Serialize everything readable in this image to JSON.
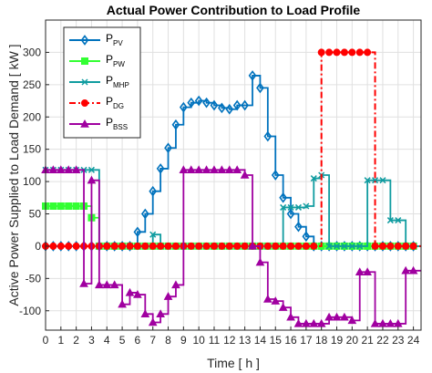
{
  "chart_data": {
    "type": "line",
    "title": "Actual Power Contribution to Load Profile",
    "xlabel": "Time [ h ]",
    "ylabel": "Active Power Supplied to Load Demand [ kW ]",
    "xlim": [
      0,
      24.5
    ],
    "ylim": [
      -130,
      350
    ],
    "xticks": [
      0,
      1,
      2,
      3,
      4,
      5,
      6,
      7,
      8,
      9,
      10,
      11,
      12,
      13,
      14,
      15,
      16,
      17,
      18,
      19,
      20,
      21,
      22,
      23,
      24
    ],
    "yticks": [
      -100,
      -50,
      0,
      50,
      100,
      150,
      200,
      250,
      300
    ],
    "grid": true,
    "legend_position": "top-left",
    "series": [
      {
        "name": "PV",
        "legend_main": "P",
        "legend_sub": "PV",
        "color": "#0072BD",
        "marker": "diamond",
        "dash": "solid",
        "x": [
          0,
          0.5,
          1,
          1.5,
          2,
          2.5,
          3,
          3.5,
          4,
          4.5,
          5,
          5.5,
          6,
          6.5,
          7,
          7.5,
          8,
          8.5,
          9,
          9.5,
          10,
          10.5,
          11,
          11.5,
          12,
          12.5,
          13,
          13.5,
          14,
          14.5,
          15,
          15.5,
          16,
          16.5,
          17,
          17.5,
          18,
          18.5,
          19,
          19.5,
          20,
          20.5,
          21,
          21.5,
          22,
          22.5,
          23,
          23.5,
          24
        ],
        "y": [
          0,
          0,
          0,
          0,
          0,
          0,
          0,
          0,
          0,
          0,
          0,
          0,
          22,
          50,
          85,
          120,
          152,
          188,
          215,
          222,
          225,
          222,
          218,
          214,
          212,
          218,
          218,
          264,
          245,
          170,
          110,
          75,
          50,
          30,
          15,
          0,
          0,
          0,
          0,
          0,
          0,
          0,
          0,
          0,
          0,
          0,
          0,
          0,
          0
        ]
      },
      {
        "name": "PW",
        "legend_main": "P",
        "legend_sub": "PW",
        "color": "#33FF33",
        "marker": "square",
        "dash": "solid",
        "x": [
          0,
          0.5,
          1,
          1.5,
          2,
          2.5,
          3,
          3.5,
          4,
          4.5,
          5,
          5.5,
          6,
          6.5,
          7,
          7.5,
          8,
          8.5,
          9,
          9.5,
          10,
          10.5,
          11,
          11.5,
          12,
          12.5,
          13,
          13.5,
          14,
          14.5,
          15,
          15.5,
          16,
          16.5,
          17,
          17.5,
          18,
          18.5,
          19,
          19.5,
          20,
          20.5,
          21,
          21.5,
          22,
          22.5,
          23,
          23.5,
          24
        ],
        "y": [
          62,
          62,
          62,
          62,
          62,
          62,
          44,
          0,
          0,
          0,
          0,
          0,
          0,
          0,
          0,
          0,
          0,
          0,
          0,
          0,
          0,
          0,
          0,
          0,
          0,
          0,
          0,
          0,
          0,
          0,
          0,
          0,
          0,
          0,
          0,
          0,
          0,
          0,
          0,
          0,
          0,
          0,
          0,
          0,
          0,
          0,
          0,
          0,
          0
        ]
      },
      {
        "name": "MHP",
        "legend_main": "P",
        "legend_sub": "MHP",
        "color": "#109CA0",
        "marker": "x",
        "dash": "solid",
        "x": [
          0,
          0.5,
          1,
          1.5,
          2,
          2.5,
          3,
          3.5,
          4,
          4.5,
          5,
          5.5,
          6,
          6.5,
          7,
          7.5,
          8,
          8.5,
          9,
          9.5,
          10,
          10.5,
          11,
          11.5,
          12,
          12.5,
          13,
          13.5,
          14,
          14.5,
          15,
          15.5,
          16,
          16.5,
          17,
          17.5,
          18,
          18.5,
          19,
          19.5,
          20,
          20.5,
          21,
          21.5,
          22,
          22.5,
          23,
          23.5,
          24
        ],
        "y": [
          118,
          118,
          118,
          118,
          118,
          118,
          118,
          0,
          0,
          0,
          0,
          0,
          0,
          0,
          18,
          0,
          0,
          0,
          0,
          0,
          0,
          0,
          0,
          0,
          0,
          0,
          0,
          0,
          0,
          0,
          0,
          60,
          60,
          60,
          62,
          105,
          110,
          0,
          0,
          0,
          0,
          0,
          102,
          102,
          102,
          40,
          40,
          0,
          0
        ]
      },
      {
        "name": "DG",
        "legend_main": "P",
        "legend_sub": "DG",
        "color": "#FF0000",
        "marker": "circle",
        "dash": "dashdot",
        "x": [
          0,
          0.5,
          1,
          1.5,
          2,
          2.5,
          3,
          3.5,
          4,
          4.5,
          5,
          5.5,
          6,
          6.5,
          7,
          7.5,
          8,
          8.5,
          9,
          9.5,
          10,
          10.5,
          11,
          11.5,
          12,
          12.5,
          13,
          13.5,
          14,
          14.5,
          15,
          15.5,
          16,
          16.5,
          17,
          17.5,
          18,
          18.5,
          19,
          19.5,
          20,
          20.5,
          21,
          21.5,
          22,
          22.5,
          23,
          23.5,
          24
        ],
        "y": [
          0,
          0,
          0,
          0,
          0,
          0,
          0,
          0,
          0,
          0,
          0,
          0,
          0,
          0,
          0,
          0,
          0,
          0,
          0,
          0,
          0,
          0,
          0,
          0,
          0,
          0,
          0,
          0,
          0,
          0,
          0,
          0,
          0,
          0,
          0,
          0,
          300,
          300,
          300,
          300,
          300,
          300,
          300,
          0,
          0,
          0,
          0,
          0,
          0
        ]
      },
      {
        "name": "BSS",
        "legend_main": "P",
        "legend_sub": "BSS",
        "color": "#A000A0",
        "marker": "triangle",
        "dash": "solid",
        "x": [
          0,
          0.5,
          1,
          1.5,
          2,
          2.5,
          3,
          3.5,
          4,
          4.5,
          5,
          5.5,
          6,
          6.5,
          7,
          7.5,
          8,
          8.5,
          9,
          9.5,
          10,
          10.5,
          11,
          11.5,
          12,
          12.5,
          13,
          13.5,
          14,
          14.5,
          15,
          15.5,
          16,
          16.5,
          17,
          17.5,
          18,
          18.5,
          19,
          19.5,
          20,
          20.5,
          21,
          21.5,
          22,
          22.5,
          23,
          23.5,
          24
        ],
        "y": [
          118,
          118,
          118,
          118,
          118,
          -58,
          102,
          -60,
          -60,
          -60,
          -90,
          -72,
          -75,
          -105,
          -118,
          -105,
          -78,
          -60,
          118,
          118,
          118,
          118,
          118,
          118,
          118,
          118,
          110,
          0,
          -25,
          -82,
          -85,
          -95,
          -110,
          -120,
          -120,
          -120,
          -120,
          -110,
          -110,
          -110,
          -115,
          -40,
          -40,
          -120,
          -120,
          -120,
          -120,
          -38,
          -38
        ]
      }
    ]
  }
}
